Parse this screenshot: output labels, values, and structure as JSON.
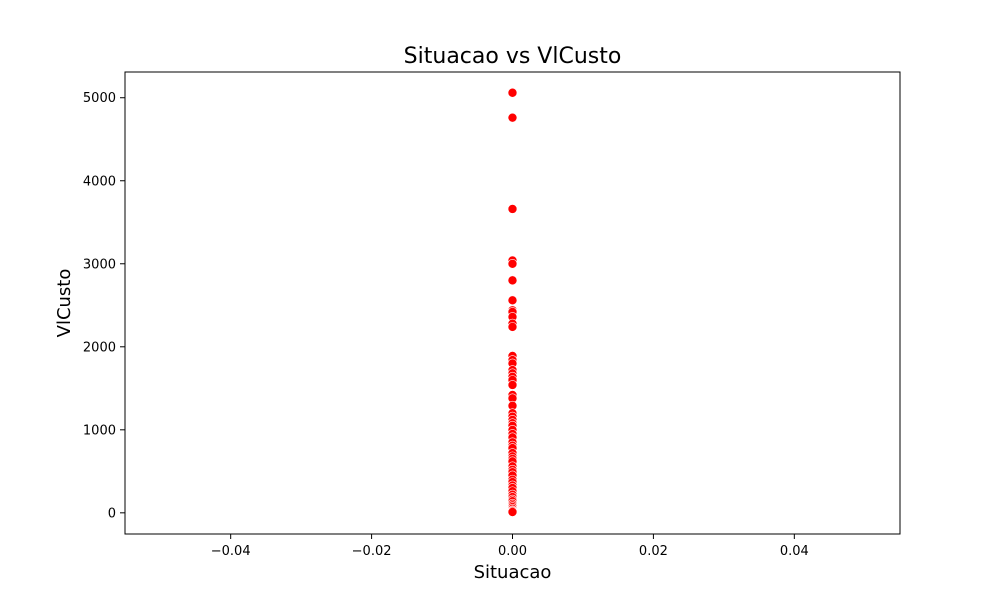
{
  "chart_data": {
    "type": "scatter",
    "title": "Situacao vs VlCusto",
    "xlabel": "Situacao",
    "ylabel": "VlCusto",
    "xlim": [
      -0.055,
      0.055
    ],
    "ylim": [
      -255,
      5310
    ],
    "x_ticks": [
      -0.04,
      -0.02,
      0.0,
      0.02,
      0.04
    ],
    "x_tick_labels": [
      "−0.04",
      "−0.02",
      "0.00",
      "0.02",
      "0.04"
    ],
    "y_ticks": [
      0,
      1000,
      2000,
      3000,
      4000,
      5000
    ],
    "y_tick_labels": [
      "0",
      "1000",
      "2000",
      "3000",
      "4000",
      "5000"
    ],
    "grid": false,
    "marker_color": "#ff0000",
    "marker_edge_color": "#ffffff",
    "series": [
      {
        "x": [
          0,
          0,
          0,
          0,
          0,
          0,
          0,
          0,
          0,
          0,
          0,
          0,
          0,
          0,
          0,
          0,
          0,
          0,
          0,
          0,
          0,
          0,
          0,
          0,
          0,
          0,
          0,
          0,
          0,
          0,
          0,
          0,
          0,
          0,
          0,
          0,
          0,
          0,
          0,
          0,
          0,
          0,
          0,
          0,
          0,
          0,
          0,
          0,
          0,
          0,
          0,
          0,
          0,
          0,
          0,
          0,
          0,
          0
        ],
        "y": [
          5060,
          4760,
          3660,
          3040,
          3000,
          2800,
          2560,
          2440,
          2420,
          2360,
          2280,
          2240,
          1890,
          1840,
          1800,
          1720,
          1680,
          1640,
          1600,
          1540,
          1420,
          1380,
          1290,
          1200,
          1160,
          1120,
          1080,
          1050,
          1000,
          950,
          910,
          850,
          810,
          780,
          720,
          680,
          650,
          620,
          560,
          520,
          490,
          450,
          400,
          370,
          330,
          300,
          260,
          220,
          190,
          160,
          140,
          110,
          90,
          70,
          50,
          30,
          20,
          10
        ]
      }
    ]
  }
}
